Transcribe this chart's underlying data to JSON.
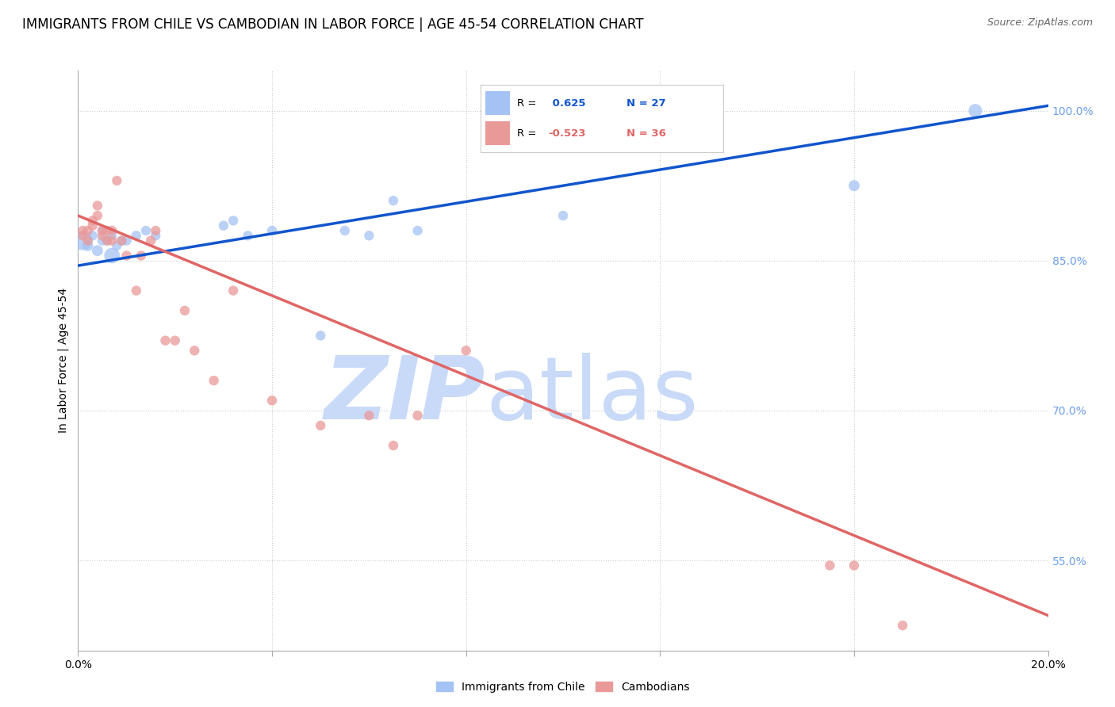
{
  "title": "IMMIGRANTS FROM CHILE VS CAMBODIAN IN LABOR FORCE | AGE 45-54 CORRELATION CHART",
  "source": "Source: ZipAtlas.com",
  "ylabel": "In Labor Force | Age 45-54",
  "watermark_zip": "ZIP",
  "watermark_atlas": "atlas",
  "blue_label": "Immigrants from Chile",
  "pink_label": "Cambodians",
  "blue_r": "0.625",
  "blue_n": "27",
  "pink_r": "-0.523",
  "pink_n": "36",
  "xlim": [
    0.0,
    0.2
  ],
  "ylim": [
    0.46,
    1.04
  ],
  "x_ticks": [
    0.0,
    0.04,
    0.08,
    0.12,
    0.16,
    0.2
  ],
  "y_ticks_right": [
    0.55,
    0.7,
    0.85,
    1.0
  ],
  "y_tick_right_labels": [
    "55.0%",
    "70.0%",
    "85.0%",
    "100.0%"
  ],
  "blue_scatter_x": [
    0.001,
    0.002,
    0.003,
    0.004,
    0.005,
    0.005,
    0.006,
    0.007,
    0.007,
    0.008,
    0.009,
    0.01,
    0.012,
    0.014,
    0.016,
    0.03,
    0.032,
    0.035,
    0.04,
    0.05,
    0.055,
    0.06,
    0.065,
    0.07,
    0.1,
    0.16,
    0.185
  ],
  "blue_scatter_y": [
    0.87,
    0.865,
    0.875,
    0.86,
    0.87,
    0.88,
    0.87,
    0.855,
    0.875,
    0.865,
    0.87,
    0.87,
    0.875,
    0.88,
    0.875,
    0.885,
    0.89,
    0.875,
    0.88,
    0.775,
    0.88,
    0.875,
    0.91,
    0.88,
    0.895,
    0.925,
    1.0
  ],
  "blue_scatter_size": [
    300,
    100,
    80,
    100,
    80,
    80,
    80,
    200,
    80,
    80,
    80,
    80,
    80,
    80,
    80,
    80,
    80,
    80,
    80,
    80,
    80,
    80,
    80,
    80,
    80,
    100,
    150
  ],
  "pink_scatter_x": [
    0.001,
    0.001,
    0.002,
    0.002,
    0.003,
    0.003,
    0.004,
    0.004,
    0.005,
    0.005,
    0.006,
    0.006,
    0.007,
    0.007,
    0.008,
    0.009,
    0.01,
    0.012,
    0.013,
    0.015,
    0.016,
    0.018,
    0.02,
    0.022,
    0.024,
    0.028,
    0.032,
    0.04,
    0.05,
    0.06,
    0.065,
    0.07,
    0.08,
    0.155,
    0.16,
    0.17
  ],
  "pink_scatter_y": [
    0.875,
    0.88,
    0.87,
    0.88,
    0.885,
    0.89,
    0.905,
    0.895,
    0.875,
    0.88,
    0.87,
    0.88,
    0.87,
    0.88,
    0.93,
    0.87,
    0.855,
    0.82,
    0.855,
    0.87,
    0.88,
    0.77,
    0.77,
    0.8,
    0.76,
    0.73,
    0.82,
    0.71,
    0.685,
    0.695,
    0.665,
    0.695,
    0.76,
    0.545,
    0.545,
    0.485
  ],
  "pink_scatter_size": [
    80,
    80,
    80,
    80,
    80,
    80,
    80,
    80,
    80,
    80,
    80,
    80,
    80,
    80,
    80,
    80,
    80,
    80,
    80,
    80,
    80,
    80,
    80,
    80,
    80,
    80,
    80,
    80,
    80,
    80,
    80,
    80,
    80,
    80,
    80,
    80
  ],
  "blue_color": "#a4c2f4",
  "pink_color": "#ea9999",
  "blue_line_color": "#1155cc",
  "pink_line_color": "#e06666",
  "grid_color": "#cccccc",
  "background_color": "#ffffff",
  "watermark_color": "#c9daf8",
  "title_fontsize": 12,
  "axis_label_fontsize": 10,
  "tick_fontsize": 10,
  "right_tick_color": "#6d9eeb",
  "blue_trend_x0": 0.0,
  "blue_trend_y0": 0.845,
  "blue_trend_x1": 0.2,
  "blue_trend_y1": 1.005,
  "pink_trend_x0": 0.0,
  "pink_trend_y0": 0.895,
  "pink_trend_x1": 0.2,
  "pink_trend_y1": 0.495
}
